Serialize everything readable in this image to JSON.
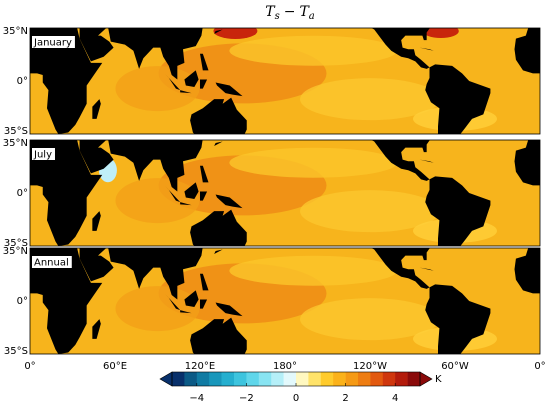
{
  "title": {
    "t1": "T",
    "s1": "s",
    "minus": "−",
    "t2": "T",
    "s2": "a"
  },
  "panels": [
    {
      "label": "January"
    },
    {
      "label": "July"
    },
    {
      "label": "Annual"
    }
  ],
  "lat_labels": [
    "35°N",
    "0°",
    "35°S"
  ],
  "lon_labels": [
    "0°",
    "60°E",
    "120°E",
    "180°",
    "120°W",
    "60°W",
    "0°"
  ],
  "colorbar": {
    "unit": "K",
    "lim": [
      -5,
      5
    ],
    "ticks": [
      {
        "value": -4,
        "label": "−4"
      },
      {
        "value": -2,
        "label": "−2"
      },
      0,
      2,
      4
    ],
    "colors": [
      "#08306b",
      "#0b5a86",
      "#107ba3",
      "#1897bb",
      "#25afcf",
      "#3dc4de",
      "#5fd6ea",
      "#88e4f2",
      "#b5eff8",
      "#e3f9fc",
      "#fff8c0",
      "#ffe36a",
      "#ffcb2c",
      "#fbb21a",
      "#f59a15",
      "#ee7d12",
      "#e2590f",
      "#cf360d",
      "#b31b0b",
      "#8a0a0a"
    ]
  }
}
